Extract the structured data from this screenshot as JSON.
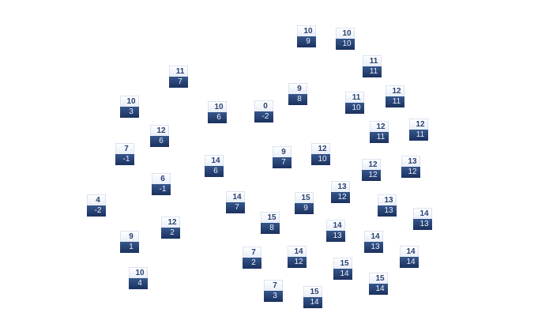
{
  "nodes": [
    {
      "top": "10",
      "bottom": "9"
    },
    {
      "top": "10",
      "bottom": "10"
    },
    {
      "top": "11",
      "bottom": "7"
    },
    {
      "top": "11",
      "bottom": "11"
    },
    {
      "top": "10",
      "bottom": "3"
    },
    {
      "top": "9",
      "bottom": "8"
    },
    {
      "top": "10",
      "bottom": "6"
    },
    {
      "top": "0",
      "bottom": "-2"
    },
    {
      "top": "11",
      "bottom": "10"
    },
    {
      "top": "12",
      "bottom": "11"
    },
    {
      "top": "12",
      "bottom": "6"
    },
    {
      "top": "12",
      "bottom": "11"
    },
    {
      "top": "12",
      "bottom": "11"
    },
    {
      "top": "7",
      "bottom": "-1"
    },
    {
      "top": "9",
      "bottom": "7"
    },
    {
      "top": "12",
      "bottom": "10"
    },
    {
      "top": "14",
      "bottom": "6"
    },
    {
      "top": "12",
      "bottom": "12"
    },
    {
      "top": "13",
      "bottom": "12"
    },
    {
      "top": "6",
      "bottom": "-1"
    },
    {
      "top": "13",
      "bottom": "12"
    },
    {
      "top": "14",
      "bottom": "7"
    },
    {
      "top": "15",
      "bottom": "9"
    },
    {
      "top": "13",
      "bottom": "13"
    },
    {
      "top": "4",
      "bottom": "-2"
    },
    {
      "top": "14",
      "bottom": "13"
    },
    {
      "top": "15",
      "bottom": "8"
    },
    {
      "top": "12",
      "bottom": "2"
    },
    {
      "top": "14",
      "bottom": "13"
    },
    {
      "top": "9",
      "bottom": "1"
    },
    {
      "top": "14",
      "bottom": "13"
    },
    {
      "top": "7",
      "bottom": "2"
    },
    {
      "top": "14",
      "bottom": "12"
    },
    {
      "top": "14",
      "bottom": "14"
    },
    {
      "top": "15",
      "bottom": "14"
    },
    {
      "top": "10",
      "bottom": "4"
    },
    {
      "top": "15",
      "bottom": "14"
    },
    {
      "top": "7",
      "bottom": "3"
    },
    {
      "top": "15",
      "bottom": "14"
    }
  ],
  "colors": {
    "top_fill": "#eef2fa",
    "bottom_fill": "#27406f",
    "top_text": "#2b4170",
    "bottom_text": "#e8eef8"
  }
}
